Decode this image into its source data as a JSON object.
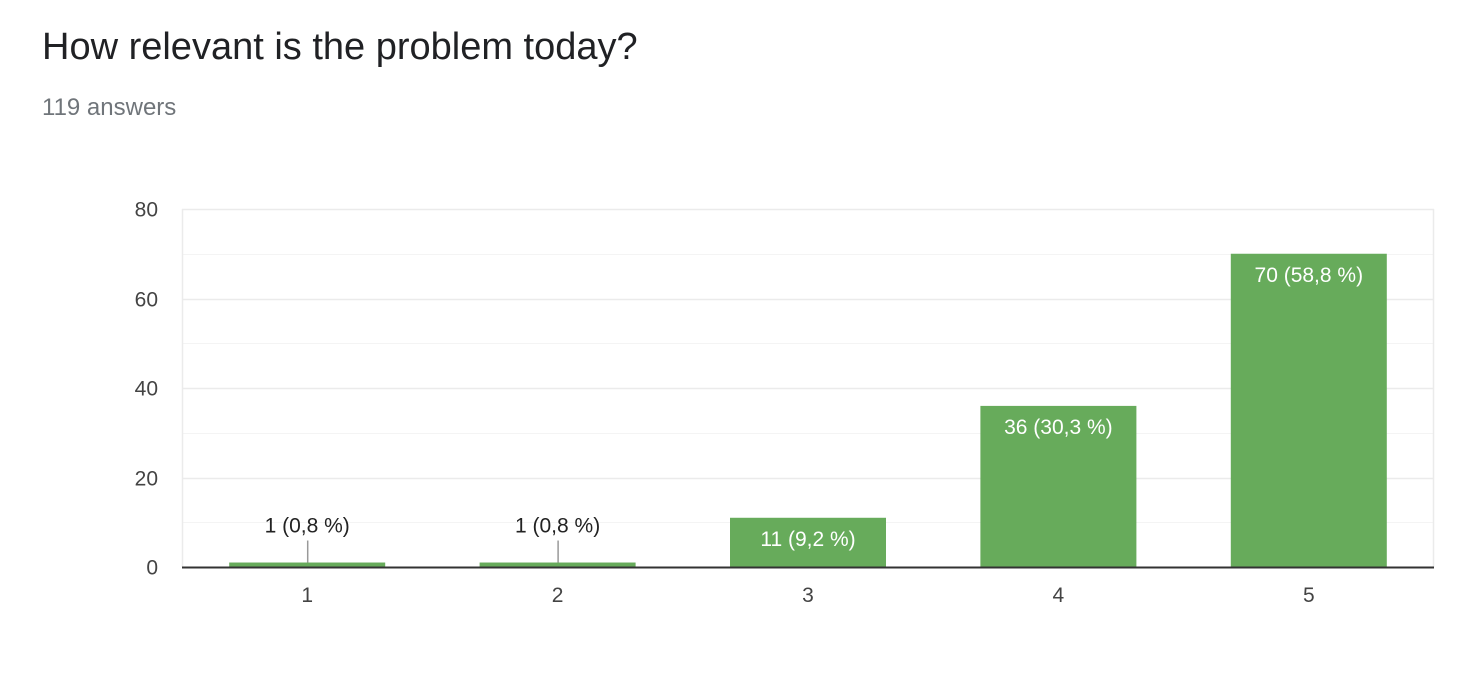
{
  "question": {
    "title": "How relevant is the problem today?",
    "answer_count": "119 answers"
  },
  "colors": {
    "bar": "#67ab5b",
    "gridline": "#ebebeb",
    "minor_gridline": "#f4f4f4",
    "axis": "#333333",
    "tick_label": "#444444",
    "label_inside": "#ffffff",
    "label_outside": "#222222",
    "leader_line": "#999999"
  },
  "chart_data": {
    "type": "bar",
    "categories": [
      "1",
      "2",
      "3",
      "4",
      "5"
    ],
    "values": [
      1,
      1,
      11,
      36,
      70
    ],
    "data_labels": [
      "1 (0,8 %)",
      "1 (0,8 %)",
      "11 (9,2 %)",
      "36 (30,3 %)",
      "70 (58,8 %)"
    ],
    "y_ticks": [
      "0",
      "20",
      "40",
      "60",
      "80"
    ],
    "ylim": [
      0,
      80
    ],
    "grid": true,
    "legend": "none",
    "title": "How relevant is the problem today?",
    "xlabel": "",
    "ylabel": ""
  }
}
